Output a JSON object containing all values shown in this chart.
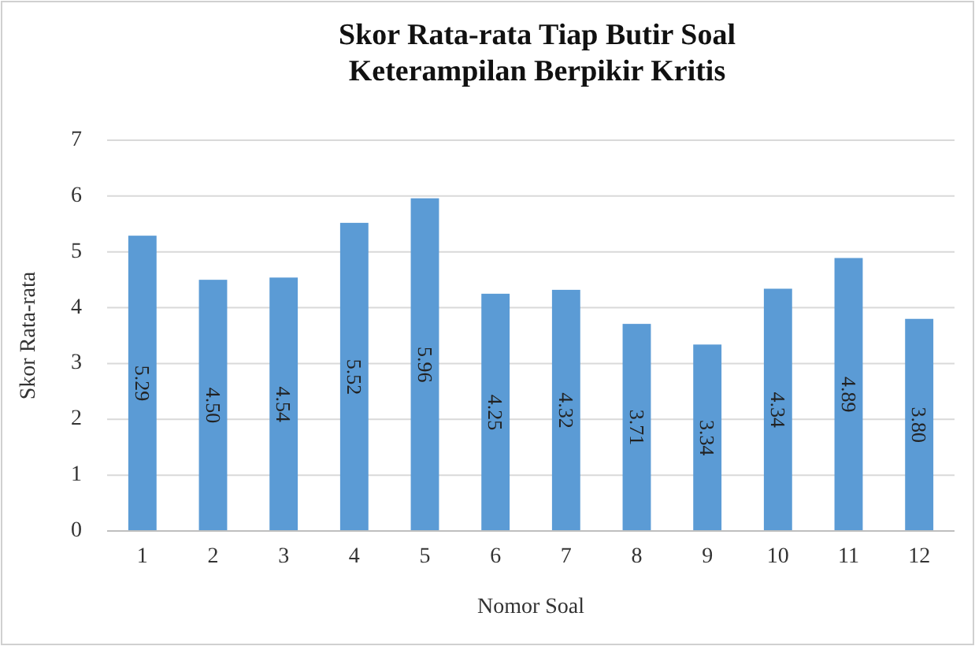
{
  "chart_data": {
    "type": "bar",
    "title": "Skor Rata-rata Tiap Butir Soal\nKeterampilan Berpikir Kritis",
    "xlabel": "Nomor Soal",
    "ylabel": "Skor Rata-rata",
    "categories": [
      "1",
      "2",
      "3",
      "4",
      "5",
      "6",
      "7",
      "8",
      "9",
      "10",
      "11",
      "12"
    ],
    "values": [
      5.29,
      4.5,
      4.54,
      5.52,
      5.96,
      4.25,
      4.32,
      3.71,
      3.34,
      4.34,
      4.89,
      3.8
    ],
    "value_labels": [
      "5.29",
      "4.50",
      "4.54",
      "5.52",
      "5.96",
      "4.25",
      "4.32",
      "3.71",
      "3.34",
      "4.34",
      "4.89",
      "3.80"
    ],
    "color": "#5b9bd5",
    "ylim": [
      0,
      7
    ],
    "yticks": [
      0,
      1,
      2,
      3,
      4,
      5,
      6,
      7
    ],
    "grid": "y"
  }
}
